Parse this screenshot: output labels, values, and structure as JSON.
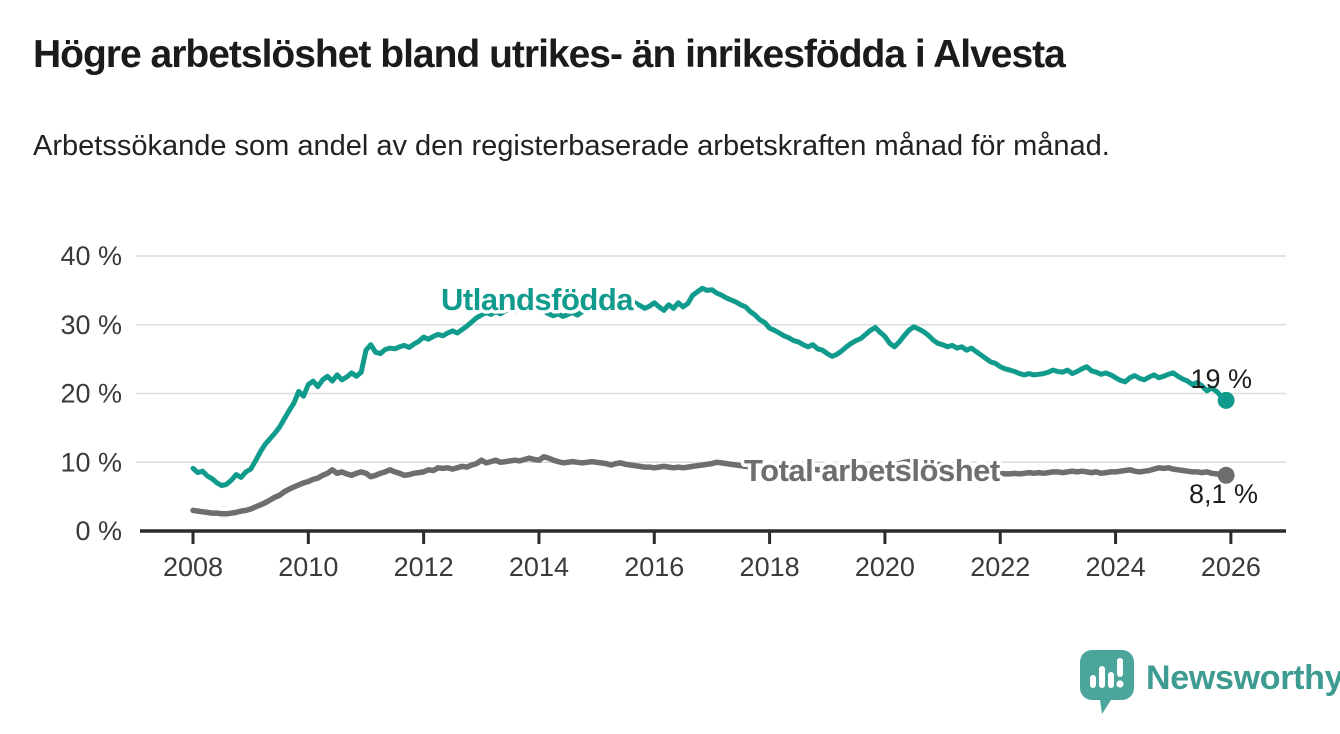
{
  "title": "Högre arbetslöshet bland utrikes- än inrikesfödda i Alvesta",
  "subtitle": "Arbetssökande som andel av den registerbaserade arbetskraften månad för månad.",
  "branding": {
    "logo_text": "Newsworthy",
    "logo_icon": "bar-chart-speech-bubble-icon"
  },
  "colors": {
    "series_utlandsfodda": "#119b8c",
    "series_total": "#6e6e6e",
    "grid": "#dcdcdc",
    "axis": "#2b2b2b",
    "text": "#1c1c1c",
    "logo": "#4ba59b",
    "logo_text": "#3d9b91"
  },
  "chart_data": {
    "type": "line",
    "xlim": [
      2007.05,
      2026.95
    ],
    "ylim": [
      0,
      40
    ],
    "grid": true,
    "legend_position": "inline-labels",
    "x_ticks": [
      2008,
      2010,
      2012,
      2014,
      2016,
      2018,
      2020,
      2022,
      2024,
      2026
    ],
    "y_ticks": [
      {
        "value": 0,
        "label": "0 %"
      },
      {
        "value": 10,
        "label": "10 %"
      },
      {
        "value": 20,
        "label": "20 %"
      },
      {
        "value": 30,
        "label": "30 %"
      },
      {
        "value": 40,
        "label": "40 %"
      }
    ],
    "series": [
      {
        "id": "utlandsfodda",
        "name": "Utlandsfödda",
        "color_key": "series_utlandsfodda",
        "start_year": 2008,
        "interval_months": 1,
        "end_label": "19 %",
        "last_value": 19.0,
        "values": [
          9.1,
          8.5,
          8.7,
          8.0,
          7.6,
          7.0,
          6.6,
          6.8,
          7.4,
          8.2,
          7.8,
          8.6,
          9.0,
          10.2,
          11.5,
          12.6,
          13.4,
          14.2,
          15.1,
          16.3,
          17.5,
          18.6,
          20.3,
          19.6,
          21.3,
          21.8,
          21.0,
          22.0,
          22.5,
          21.8,
          22.7,
          22.0,
          22.4,
          23.0,
          22.5,
          23.1,
          26.3,
          27.1,
          26.0,
          25.8,
          26.4,
          26.6,
          26.5,
          26.8,
          27.0,
          26.7,
          27.2,
          27.6,
          28.2,
          27.9,
          28.3,
          28.6,
          28.4,
          28.8,
          29.1,
          28.8,
          29.3,
          29.8,
          30.4,
          31.0,
          31.4,
          31.8,
          31.5,
          31.9,
          31.6,
          32.0,
          32.3,
          32.0,
          32.4,
          32.2,
          32.6,
          32.4,
          32.4,
          32.0,
          31.6,
          31.3,
          31.6,
          31.2,
          31.5,
          31.8,
          31.4,
          31.9,
          32.2,
          32.6,
          32.9,
          32.5,
          32.2,
          32.6,
          32.3,
          32.7,
          33.0,
          32.6,
          33.2,
          32.8,
          32.4,
          32.7,
          33.2,
          32.6,
          32.1,
          32.9,
          32.4,
          33.2,
          32.6,
          33.1,
          34.3,
          34.8,
          35.3,
          35.0,
          35.1,
          34.6,
          34.3,
          33.9,
          33.6,
          33.3,
          32.9,
          32.6,
          31.9,
          31.4,
          30.7,
          30.3,
          29.5,
          29.2,
          28.8,
          28.4,
          28.1,
          27.7,
          27.5,
          27.1,
          26.8,
          27.1,
          26.5,
          26.3,
          25.8,
          25.4,
          25.7,
          26.2,
          26.8,
          27.3,
          27.7,
          28.0,
          28.6,
          29.2,
          29.6,
          28.9,
          28.3,
          27.3,
          26.8,
          27.5,
          28.4,
          29.2,
          29.7,
          29.4,
          29.0,
          28.5,
          27.8,
          27.3,
          27.1,
          26.8,
          27.0,
          26.6,
          26.8,
          26.3,
          26.6,
          26.1,
          25.6,
          25.1,
          24.6,
          24.4,
          23.9,
          23.6,
          23.4,
          23.2,
          22.9,
          22.7,
          22.9,
          22.7,
          22.8,
          22.9,
          23.1,
          23.4,
          23.2,
          23.1,
          23.4,
          22.9,
          23.2,
          23.6,
          23.9,
          23.3,
          23.1,
          22.8,
          23.0,
          22.7,
          22.3,
          21.9,
          21.7,
          22.3,
          22.6,
          22.2,
          22.0,
          22.4,
          22.7,
          22.3,
          22.5,
          22.8,
          23.0,
          22.5,
          22.1,
          21.8,
          21.3,
          21.6,
          21.1,
          20.4,
          20.8,
          20.3,
          19.6,
          19.0
        ]
      },
      {
        "id": "total",
        "name": "Total arbetslöshet",
        "color_key": "series_total",
        "start_year": 2008,
        "interval_months": 1,
        "end_label": "8,1 %",
        "last_value": 8.1,
        "values": [
          3.0,
          2.9,
          2.8,
          2.7,
          2.6,
          2.6,
          2.5,
          2.5,
          2.6,
          2.7,
          2.9,
          3.0,
          3.2,
          3.5,
          3.8,
          4.1,
          4.5,
          4.9,
          5.2,
          5.7,
          6.1,
          6.4,
          6.7,
          7.0,
          7.2,
          7.5,
          7.7,
          8.1,
          8.4,
          8.9,
          8.4,
          8.6,
          8.3,
          8.1,
          8.4,
          8.6,
          8.4,
          7.9,
          8.1,
          8.4,
          8.6,
          8.9,
          8.6,
          8.4,
          8.1,
          8.2,
          8.4,
          8.5,
          8.6,
          8.9,
          8.8,
          9.2,
          9.1,
          9.2,
          9.0,
          9.2,
          9.4,
          9.3,
          9.6,
          9.8,
          10.3,
          9.9,
          10.1,
          10.3,
          10.0,
          10.1,
          10.2,
          10.3,
          10.2,
          10.4,
          10.6,
          10.4,
          10.3,
          10.8,
          10.6,
          10.3,
          10.1,
          9.9,
          10.0,
          10.1,
          10.0,
          9.9,
          10.0,
          10.1,
          10.0,
          9.9,
          9.8,
          9.6,
          9.8,
          9.9,
          9.7,
          9.6,
          9.5,
          9.4,
          9.3,
          9.3,
          9.2,
          9.3,
          9.4,
          9.3,
          9.2,
          9.3,
          9.2,
          9.3,
          9.4,
          9.5,
          9.6,
          9.7,
          9.8,
          10.0,
          9.9,
          9.8,
          9.7,
          9.6,
          9.5,
          9.4,
          9.3,
          9.2,
          9.1,
          9.0,
          8.9,
          8.8,
          8.9,
          8.8,
          8.7,
          8.8,
          8.9,
          8.8,
          8.9,
          9.0,
          8.9,
          9.0,
          9.0,
          9.1,
          9.0,
          9.1,
          9.2,
          9.1,
          9.2,
          9.3,
          9.2,
          9.3,
          9.4,
          9.3,
          9.4,
          9.3,
          9.5,
          9.8,
          10.0,
          10.1,
          10.2,
          10.1,
          10.0,
          9.9,
          9.8,
          9.7,
          9.6,
          9.5,
          9.4,
          9.3,
          9.2,
          9.0,
          8.9,
          8.8,
          8.7,
          8.6,
          8.5,
          8.4,
          8.4,
          8.3,
          8.3,
          8.4,
          8.3,
          8.4,
          8.5,
          8.4,
          8.5,
          8.4,
          8.5,
          8.6,
          8.6,
          8.5,
          8.6,
          8.7,
          8.6,
          8.7,
          8.6,
          8.5,
          8.6,
          8.4,
          8.5,
          8.6,
          8.6,
          8.7,
          8.8,
          8.9,
          8.7,
          8.6,
          8.7,
          8.8,
          9.0,
          9.2,
          9.1,
          9.2,
          9.0,
          8.9,
          8.8,
          8.7,
          8.6,
          8.6,
          8.5,
          8.6,
          8.4,
          8.3,
          8.2,
          8.1
        ]
      }
    ]
  }
}
